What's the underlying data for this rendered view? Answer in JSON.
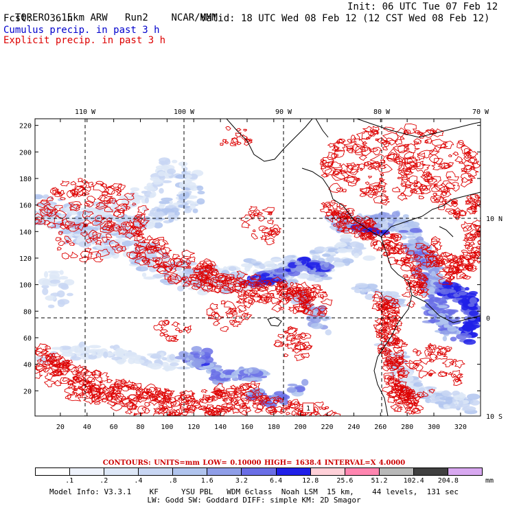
{
  "header": {
    "model": "TORERO",
    "resolution": "15km ARW",
    "run": "Run2",
    "org": "NCAR/MMM",
    "init": "Init: 06 UTC Tue 07 Feb 12",
    "fcst_label": "Fcst:",
    "fcst_value": "36 h",
    "valid": "Valid: 18 UTC Wed 08 Feb 12 (12 CST Wed 08 Feb 12)",
    "field1": "Cumulus precip. in past 3 h",
    "field2": "Explicit precip. in past 3 h"
  },
  "colors": {
    "cumulus": "#0000cc",
    "explicit": "#dd0000",
    "coast": "#000000"
  },
  "map": {
    "lon_labels": [
      "110 W",
      "100 W",
      "90 W",
      "80 W",
      "70 W"
    ],
    "lat_labels": [
      "10 N",
      "0",
      "10 S"
    ],
    "x_ticks": [
      "20",
      "40",
      "60",
      "80",
      "100",
      "120",
      "140",
      "160",
      "180",
      "200",
      "220",
      "240",
      "260",
      "280",
      "300",
      "320"
    ],
    "y_ticks": [
      "20",
      "40",
      "60",
      "80",
      "100",
      "120",
      "140",
      "160",
      "180",
      "200",
      "220"
    ],
    "x_range": [
      1,
      335
    ],
    "y_range": [
      1,
      225
    ]
  },
  "contours": {
    "label": "CONTOURS:",
    "units": "UNITS=mm",
    "low": "LOW= 0.10000",
    "high": "HIGH= 1638.4",
    "interval": "INTERVAL=X 4.0000"
  },
  "colorbar": {
    "labels": [
      ".1",
      ".2",
      ".4",
      ".8",
      "1.6",
      "3.2",
      "6.4",
      "12.8",
      "25.6",
      "51.2",
      "102.4",
      "204.8"
    ],
    "unit": "mm",
    "colors": [
      "#ffffff",
      "#eef2fb",
      "#dde7f7",
      "#c8d6f3",
      "#b0c4ee",
      "#8f9ee8",
      "#6a6ee6",
      "#2020e8",
      "#ffd0d8",
      "#ff86b0",
      "#b8b8b8",
      "#404040",
      "#d8a8f0"
    ]
  },
  "info": {
    "line1": "Model Info: V3.3.1    KF     YSU PBL   WDM 6class  Noah LSM  15 km,    44 levels,  131 sec",
    "line2": "LW: Godd SW: Goddard DIFF: simple KM: 2D Smagor"
  },
  "marker": "1"
}
